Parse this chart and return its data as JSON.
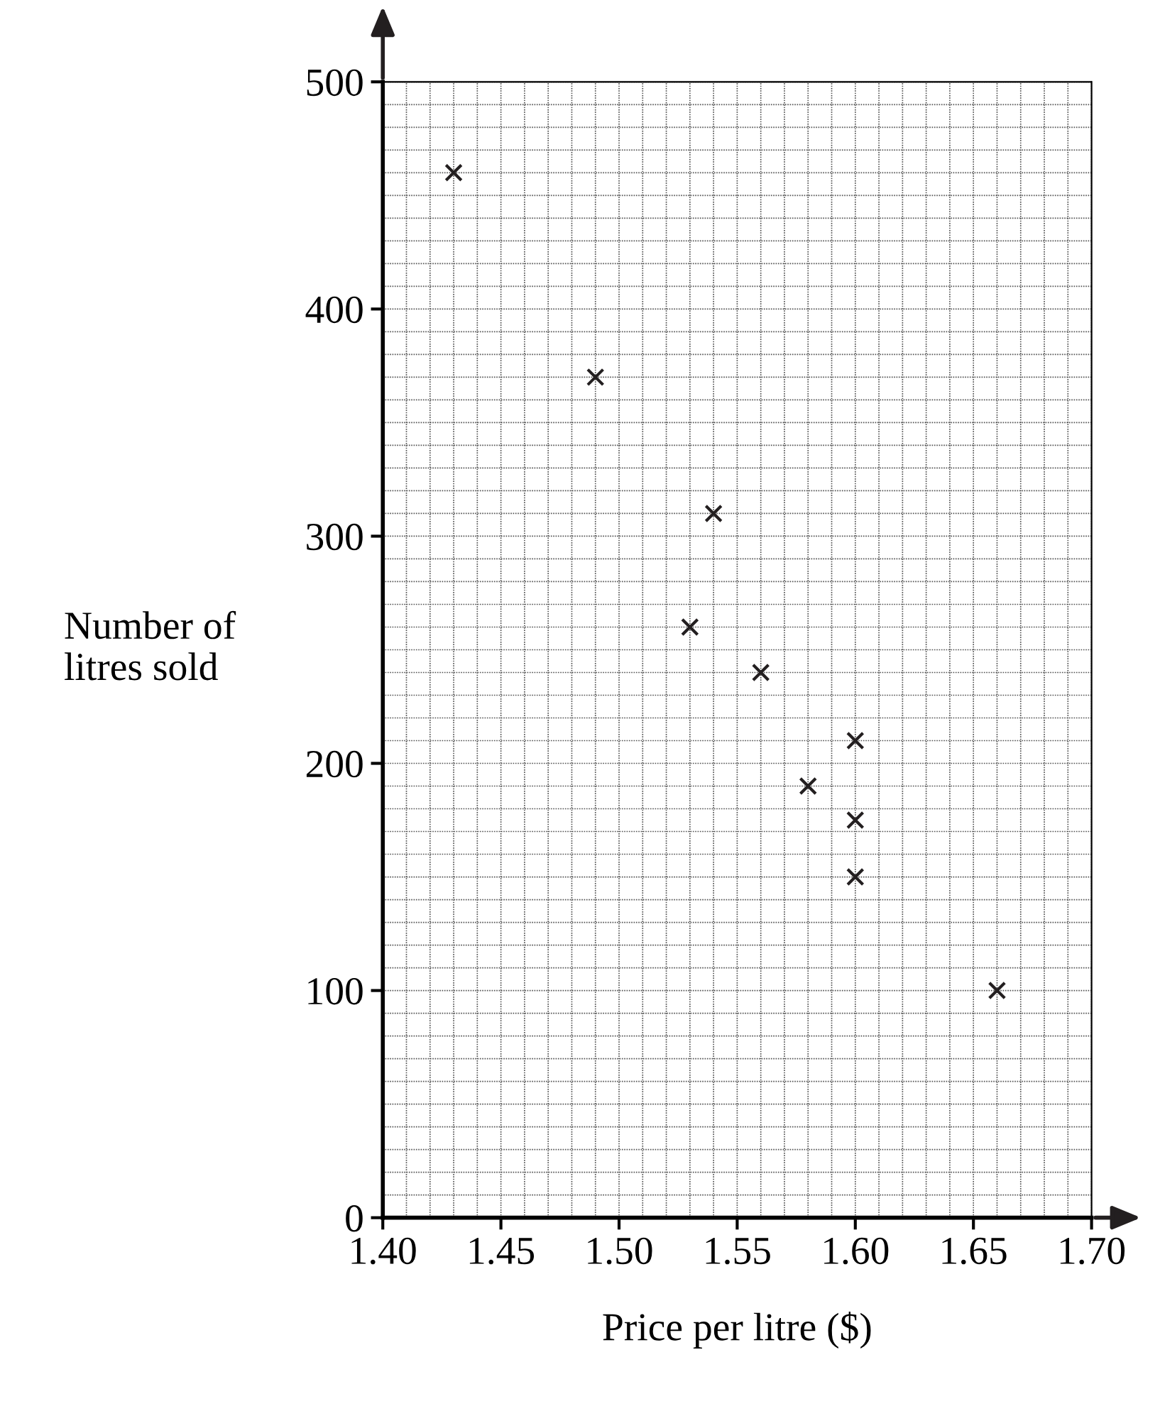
{
  "chart_data": {
    "type": "scatter",
    "xlabel": "Price per litre ($)",
    "ylabel": "Number of\nlitres sold",
    "x": [
      1.43,
      1.49,
      1.54,
      1.53,
      1.56,
      1.58,
      1.6,
      1.6,
      1.6,
      1.66
    ],
    "values": [
      460,
      370,
      310,
      260,
      240,
      190,
      210,
      175,
      150,
      100
    ],
    "color": "#231f20",
    "marker": "cross",
    "xlim": [
      1.4,
      1.7
    ],
    "ylim": [
      0,
      500
    ],
    "xticks": [
      {
        "value": 1.4,
        "label": "1.40"
      },
      {
        "value": 1.45,
        "label": "1.45"
      },
      {
        "value": 1.5,
        "label": "1.50"
      },
      {
        "value": 1.55,
        "label": "1.55"
      },
      {
        "value": 1.6,
        "label": "1.60"
      },
      {
        "value": 1.65,
        "label": "1.65"
      },
      {
        "value": 1.7,
        "label": "1.70"
      }
    ],
    "yticks": [
      0,
      100,
      200,
      300,
      400,
      500
    ],
    "grid": true
  }
}
